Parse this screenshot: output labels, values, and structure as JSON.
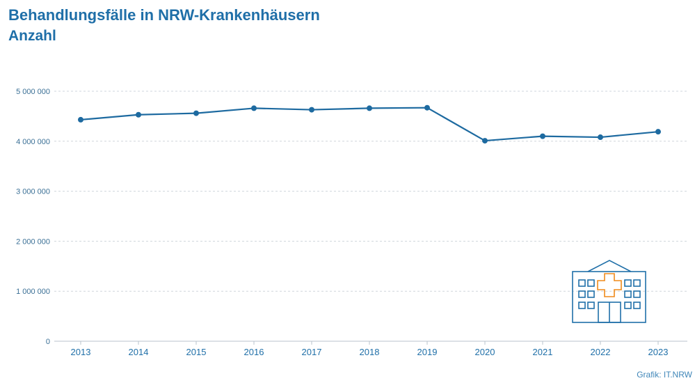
{
  "header": {
    "title": "Behandlungsfälle in NRW-Krankenhäusern",
    "subtitle": "Anzahl"
  },
  "footer": {
    "credit": "Grafik: IT.NRW"
  },
  "colors": {
    "line": "#1d6aa0",
    "text": "#1f6fa8",
    "grid": "#cfd6dc",
    "icon_building": "#1f6fa8",
    "icon_cross": "#ef8a1a"
  },
  "icon": "hospital-icon",
  "chart_data": {
    "type": "line",
    "title": "Behandlungsfälle in NRW-Krankenhäusern",
    "subtitle": "Anzahl",
    "xlabel": "",
    "ylabel": "",
    "categories": [
      "2013",
      "2014",
      "2015",
      "2016",
      "2017",
      "2018",
      "2019",
      "2020",
      "2021",
      "2022",
      "2023"
    ],
    "series": [
      {
        "values": [
          4430000,
          4530000,
          4560000,
          4660000,
          4630000,
          4660000,
          4670000,
          4010000,
          4100000,
          4080000,
          4190000
        ]
      }
    ],
    "ylim": [
      0,
      5000000
    ],
    "yticks": [
      0,
      1000000,
      2000000,
      3000000,
      4000000,
      5000000
    ],
    "ytick_labels": [
      "0",
      "1 000 000",
      "2 000 000",
      "3 000 000",
      "4 000 000",
      "5 000 000"
    ],
    "grid": true,
    "legend": "none"
  }
}
